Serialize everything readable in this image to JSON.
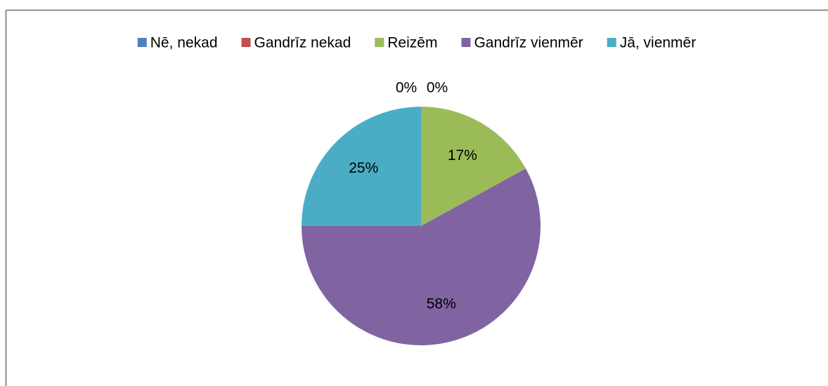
{
  "chart_data": {
    "type": "pie",
    "categories": [
      "Nē, nekad",
      "Gandrīz nekad",
      "Reizēm",
      "Gandrīz vienmēr",
      "Jā, vienmēr"
    ],
    "values": [
      0,
      0,
      17,
      58,
      25
    ],
    "value_labels": [
      "0%",
      "0%",
      "17%",
      "58%",
      "25%"
    ],
    "colors": [
      "#4f81bd",
      "#c0504d",
      "#9bbb59",
      "#8064a2",
      "#4bacc6"
    ],
    "legend": "top"
  }
}
